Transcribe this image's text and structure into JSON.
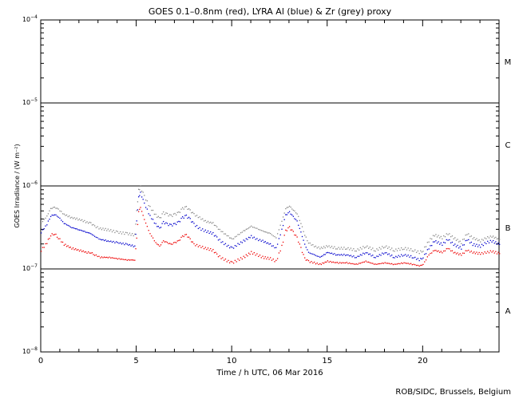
{
  "chart_data": {
    "type": "scatter",
    "title": "GOES 0.1–0.8nm (red), LYRA Al (blue) & Zr (grey) proxy",
    "xlabel": "Time / h UTC, 06 Mar 2016",
    "ylabel": "GOES Irradiance / (W m⁻²)",
    "xlim": [
      0,
      24
    ],
    "ylim": [
      1e-08,
      0.0001
    ],
    "yscale": "log",
    "x_ticks": [
      0,
      5,
      10,
      15,
      20
    ],
    "y_ticks": [
      {
        "value": 1e-08,
        "base": "10",
        "exp": "−8"
      },
      {
        "value": 1e-07,
        "base": "10",
        "exp": "−7"
      },
      {
        "value": 1e-06,
        "base": "10",
        "exp": "−6"
      },
      {
        "value": 1e-05,
        "base": "10",
        "exp": "−5"
      },
      {
        "value": 0.0001,
        "base": "10",
        "exp": "−4"
      }
    ],
    "class_lines": [
      1e-07,
      1e-06,
      1e-05
    ],
    "flare_classes": [
      {
        "label": "A",
        "value": 3.16e-08
      },
      {
        "label": "B",
        "value": 3.16e-07
      },
      {
        "label": "C",
        "value": 3.16e-06
      },
      {
        "label": "M",
        "value": 3.16e-05
      }
    ],
    "series": [
      {
        "color": "#888888",
        "x": [
          0,
          0.3,
          0.5,
          0.7,
          0.9,
          1.2,
          1.6,
          2.0,
          2.4,
          2.6,
          2.8,
          3.1,
          3.5,
          4.0,
          4.5,
          4.9,
          5.0,
          5.1,
          5.2,
          5.4,
          5.7,
          6.0,
          6.2,
          6.4,
          6.6,
          6.8,
          7.0,
          7.2,
          7.4,
          7.6,
          7.8,
          8.0,
          8.3,
          8.6,
          9.0,
          9.2,
          9.5,
          9.8,
          10.0,
          10.3,
          10.6,
          11.0,
          11.3,
          11.6,
          12.0,
          12.3,
          12.6,
          12.8,
          13.0,
          13.2,
          13.4,
          13.6,
          13.8,
          14.0,
          14.3,
          14.6,
          15.0,
          15.5,
          16.0,
          16.5,
          17.0,
          17.5,
          18.0,
          18.5,
          19.0,
          19.5,
          19.8,
          20.0,
          20.3,
          20.6,
          21.0,
          21.3,
          21.6,
          22.0,
          22.3,
          22.6,
          23.0,
          23.3,
          23.6,
          24.0
        ],
        "y": [
          3.6e-07,
          4.4e-07,
          5.4e-07,
          5.6e-07,
          5.3e-07,
          4.6e-07,
          4.2e-07,
          4e-07,
          3.7e-07,
          3.6e-07,
          3.3e-07,
          3.1e-07,
          3e-07,
          2.8e-07,
          2.7e-07,
          2.6e-07,
          5e-07,
          9e-07,
          9.8e-07,
          7.6e-07,
          5.6e-07,
          4.5e-07,
          4.1e-07,
          4.8e-07,
          4.6e-07,
          4.4e-07,
          4.6e-07,
          4.8e-07,
          5.4e-07,
          5.6e-07,
          5.1e-07,
          4.6e-07,
          4.2e-07,
          3.8e-07,
          3.6e-07,
          3.2e-07,
          2.8e-07,
          2.5e-07,
          2.3e-07,
          2.6e-07,
          2.9e-07,
          3.3e-07,
          3.1e-07,
          2.9e-07,
          2.7e-07,
          2.4e-07,
          3.8e-07,
          5.4e-07,
          5.8e-07,
          5.2e-07,
          4.7e-07,
          3.6e-07,
          2.6e-07,
          2.1e-07,
          1.9e-07,
          1.8e-07,
          1.9e-07,
          1.8e-07,
          1.8e-07,
          1.7e-07,
          1.9e-07,
          1.7e-07,
          1.9e-07,
          1.7e-07,
          1.8e-07,
          1.7e-07,
          1.6e-07,
          1.7e-07,
          2.2e-07,
          2.6e-07,
          2.4e-07,
          2.7e-07,
          2.4e-07,
          2.1e-07,
          2.7e-07,
          2.4e-07,
          2.2e-07,
          2.4e-07,
          2.5e-07,
          2.3e-07
        ]
      },
      {
        "color": "#0000cc",
        "x": [
          0,
          0.3,
          0.5,
          0.7,
          0.9,
          1.2,
          1.6,
          2.0,
          2.4,
          2.6,
          2.8,
          3.1,
          3.5,
          4.0,
          4.5,
          4.9,
          5.0,
          5.1,
          5.2,
          5.4,
          5.7,
          6.0,
          6.2,
          6.4,
          6.6,
          6.8,
          7.0,
          7.2,
          7.4,
          7.6,
          7.8,
          8.0,
          8.3,
          8.6,
          9.0,
          9.2,
          9.5,
          9.8,
          10.0,
          10.3,
          10.6,
          11.0,
          11.3,
          11.6,
          12.0,
          12.3,
          12.6,
          12.8,
          13.0,
          13.2,
          13.4,
          13.6,
          13.8,
          14.0,
          14.3,
          14.6,
          15.0,
          15.5,
          16.0,
          16.5,
          17.0,
          17.5,
          18.0,
          18.5,
          19.0,
          19.5,
          19.8,
          20.0,
          20.3,
          20.6,
          21.0,
          21.3,
          21.6,
          22.0,
          22.3,
          22.6,
          23.0,
          23.3,
          23.6,
          24.0
        ],
        "y": [
          2.8e-07,
          3.5e-07,
          4.4e-07,
          4.6e-07,
          4.3e-07,
          3.6e-07,
          3.2e-07,
          3e-07,
          2.8e-07,
          2.7e-07,
          2.5e-07,
          2.3e-07,
          2.2e-07,
          2.1e-07,
          2e-07,
          1.9e-07,
          3.8e-07,
          7.4e-07,
          8.4e-07,
          6.2e-07,
          4.4e-07,
          3.5e-07,
          3.1e-07,
          3.7e-07,
          3.5e-07,
          3.4e-07,
          3.5e-07,
          3.7e-07,
          4.2e-07,
          4.4e-07,
          4e-07,
          3.5e-07,
          3.1e-07,
          2.9e-07,
          2.7e-07,
          2.4e-07,
          2.1e-07,
          1.9e-07,
          1.8e-07,
          2e-07,
          2.2e-07,
          2.5e-07,
          2.3e-07,
          2.2e-07,
          2e-07,
          1.8e-07,
          3e-07,
          4.5e-07,
          4.9e-07,
          4.3e-07,
          3.8e-07,
          2.8e-07,
          2e-07,
          1.6e-07,
          1.5e-07,
          1.4e-07,
          1.6e-07,
          1.5e-07,
          1.5e-07,
          1.4e-07,
          1.6e-07,
          1.4e-07,
          1.6e-07,
          1.4e-07,
          1.5e-07,
          1.4e-07,
          1.3e-07,
          1.4e-07,
          1.8e-07,
          2.2e-07,
          2e-07,
          2.3e-07,
          2e-07,
          1.8e-07,
          2.3e-07,
          2e-07,
          1.9e-07,
          2.1e-07,
          2.2e-07,
          2e-07
        ]
      },
      {
        "color": "#ee0000",
        "x": [
          0,
          0.3,
          0.5,
          0.7,
          0.9,
          1.2,
          1.6,
          2.0,
          2.4,
          2.6,
          2.8,
          3.1,
          3.5,
          4.0,
          4.5,
          4.9,
          5.0,
          5.1,
          5.2,
          5.4,
          5.7,
          6.0,
          6.2,
          6.4,
          6.6,
          6.8,
          7.0,
          7.2,
          7.4,
          7.6,
          7.8,
          8.0,
          8.3,
          8.6,
          9.0,
          9.2,
          9.5,
          9.8,
          10.0,
          10.3,
          10.6,
          11.0,
          11.3,
          11.6,
          12.0,
          12.3,
          12.6,
          12.8,
          13.0,
          13.2,
          13.4,
          13.6,
          13.8,
          14.0,
          14.3,
          14.6,
          15.0,
          15.5,
          16.0,
          16.5,
          17.0,
          17.5,
          18.0,
          18.5,
          19.0,
          19.5,
          19.8,
          20.0,
          20.3,
          20.6,
          21.0,
          21.3,
          21.6,
          22.0,
          22.3,
          22.6,
          23.0,
          23.3,
          23.6,
          24.0
        ],
        "y": [
          1.7e-07,
          2.1e-07,
          2.6e-07,
          2.7e-07,
          2.4e-07,
          2e-07,
          1.8e-07,
          1.7e-07,
          1.6e-07,
          1.6e-07,
          1.5e-07,
          1.4e-07,
          1.4e-07,
          1.35e-07,
          1.3e-07,
          1.3e-07,
          2.4e-07,
          5e-07,
          5.6e-07,
          4e-07,
          2.7e-07,
          2.1e-07,
          1.9e-07,
          2.2e-07,
          2.1e-07,
          2e-07,
          2.1e-07,
          2.2e-07,
          2.5e-07,
          2.6e-07,
          2.3e-07,
          2e-07,
          1.9e-07,
          1.8e-07,
          1.7e-07,
          1.5e-07,
          1.35e-07,
          1.25e-07,
          1.2e-07,
          1.3e-07,
          1.4e-07,
          1.6e-07,
          1.5e-07,
          1.4e-07,
          1.35e-07,
          1.25e-07,
          1.9e-07,
          2.9e-07,
          3.2e-07,
          2.8e-07,
          2.4e-07,
          1.8e-07,
          1.35e-07,
          1.25e-07,
          1.2e-07,
          1.15e-07,
          1.25e-07,
          1.2e-07,
          1.2e-07,
          1.15e-07,
          1.25e-07,
          1.15e-07,
          1.2e-07,
          1.15e-07,
          1.2e-07,
          1.15e-07,
          1.1e-07,
          1.15e-07,
          1.5e-07,
          1.7e-07,
          1.6e-07,
          1.8e-07,
          1.6e-07,
          1.5e-07,
          1.7e-07,
          1.6e-07,
          1.55e-07,
          1.6e-07,
          1.65e-07,
          1.55e-07
        ]
      }
    ]
  },
  "footer": {
    "credit": "ROB/SIDC, Brussels, Belgium"
  }
}
